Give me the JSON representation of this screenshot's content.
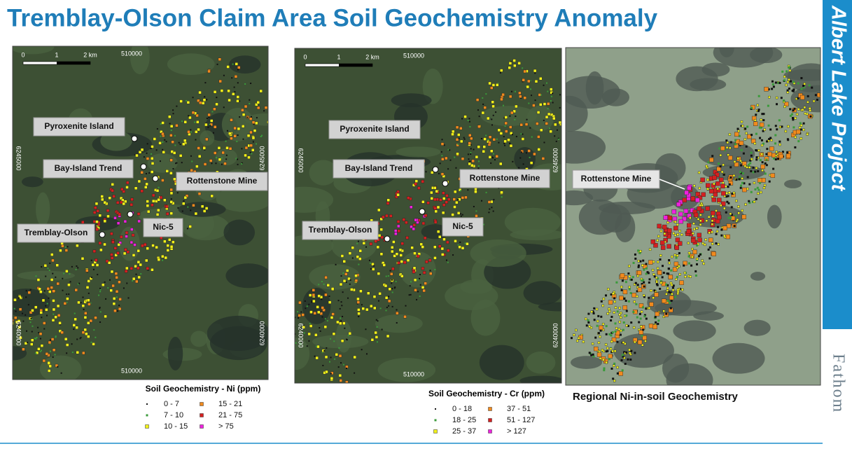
{
  "header": {
    "title": "Tremblay-Olson Claim Area Soil Geochemistry Anomaly"
  },
  "sidebar": {
    "project": "Albert Lake Project",
    "logo": "Fathom"
  },
  "maps": [
    {
      "scale": [
        "0",
        "1",
        "2 km"
      ],
      "coords": {
        "top": "510000",
        "bottom": "510000",
        "left_upper": "6245000",
        "right_upper": "6245000",
        "left_lower": "6240000",
        "right_lower": "6240000"
      },
      "labels": [
        "Pyroxenite Island",
        "Bay-Island Trend",
        "Rottenstone Mine",
        "Tremblay-Olson",
        "Nic-5"
      ],
      "legend": {
        "title": "Soil Geochemistry - Ni (ppm)",
        "items": [
          {
            "label": "0 - 7",
            "color": "#111111"
          },
          {
            "label": "7 - 10",
            "color": "#3a9a3a"
          },
          {
            "label": "10 - 15",
            "color": "#f2f21a"
          },
          {
            "label": "15 - 21",
            "color": "#f08a1e"
          },
          {
            "label": "21 - 75",
            "color": "#d42020"
          },
          {
            "label": "> 75",
            "color": "#ee22dd"
          }
        ]
      }
    },
    {
      "scale": [
        "0",
        "1",
        "2 km"
      ],
      "coords": {
        "top": "510000",
        "bottom": "510000",
        "left_upper": "6245000",
        "right_upper": "6245000",
        "left_lower": "6240000",
        "right_lower": "6240000"
      },
      "labels": [
        "Pyroxenite Island",
        "Bay-Island Trend",
        "Rottenstone Mine",
        "Tremblay-Olson",
        "Nic-5"
      ],
      "legend": {
        "title": "Soil Geochemistry - Cr (ppm)",
        "items": [
          {
            "label": "0 - 18",
            "color": "#111111"
          },
          {
            "label": "18 - 25",
            "color": "#3a9a3a"
          },
          {
            "label": "25 - 37",
            "color": "#f2f21a"
          },
          {
            "label": "37 - 51",
            "color": "#f08a1e"
          },
          {
            "label": "51 - 127",
            "color": "#d42020"
          },
          {
            "label": "> 127",
            "color": "#ee22dd"
          }
        ]
      }
    }
  ],
  "regional": {
    "label": "Rottenstone Mine",
    "caption": "Regional Ni-in-soil Geochemistry"
  }
}
